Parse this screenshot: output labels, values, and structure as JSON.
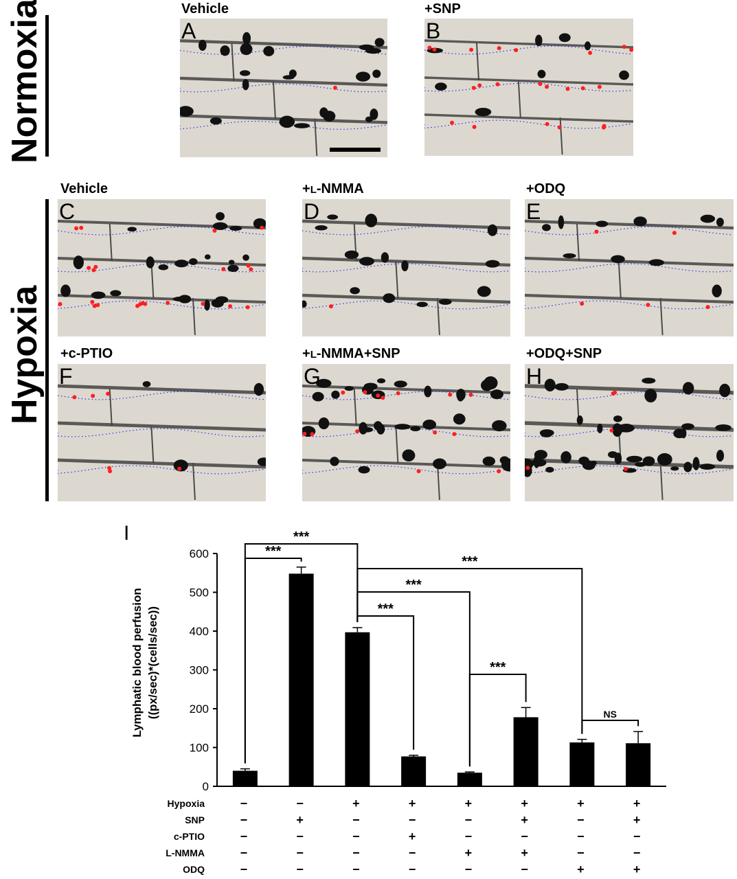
{
  "group_labels": {
    "normoxia": "Normoxia",
    "hypoxia": "Hypoxia"
  },
  "panels": {
    "A": {
      "letter": "A",
      "condition": "Vehicle"
    },
    "B": {
      "letter": "B",
      "condition": "+SNP"
    },
    "C": {
      "letter": "C",
      "condition": "Vehicle"
    },
    "D": {
      "letter": "D",
      "condition_prefix": "+",
      "condition_sc": "L",
      "condition_rest": "-NMMA"
    },
    "E": {
      "letter": "E",
      "condition": "+ODQ"
    },
    "F": {
      "letter": "F",
      "condition": "+c-PTIO"
    },
    "G": {
      "letter": "G",
      "condition_prefix": "+",
      "condition_sc": "L",
      "condition_rest": "-NMMA+SNP"
    },
    "H": {
      "letter": "H",
      "condition": "+ODQ+SNP"
    }
  },
  "colors": {
    "bar": "#000000",
    "dots_red": "#ff1f1f",
    "dots_blue": "#2a2aff",
    "tissue": "#dcd8cf"
  },
  "chart_data": {
    "type": "bar",
    "panel_letter": "I",
    "ylabel_line1": "Lymphatic blood perfusion",
    "ylabel_line2": "((px/sec)*(cells/sec))",
    "ylim": [
      0,
      600
    ],
    "yticks": [
      "0",
      "100",
      "200",
      "300",
      "400",
      "500",
      "600"
    ],
    "values": [
      40,
      548,
      397,
      77,
      35,
      178,
      113,
      111
    ],
    "errors": [
      5,
      17,
      12,
      3,
      2,
      25,
      8,
      30
    ],
    "condition_rows": [
      {
        "label": "Hypoxia",
        "signs": [
          "−",
          "−",
          "+",
          "+",
          "+",
          "+",
          "+",
          "+"
        ]
      },
      {
        "label": "SNP",
        "signs": [
          "−",
          "+",
          "−",
          "−",
          "−",
          "+",
          "−",
          "+"
        ]
      },
      {
        "label": "c-PTIO",
        "signs": [
          "−",
          "−",
          "−",
          "+",
          "−",
          "−",
          "−",
          "−"
        ]
      },
      {
        "label": "L-NMMA",
        "signs": [
          "−",
          "−",
          "−",
          "−",
          "+",
          "+",
          "−",
          "−"
        ]
      },
      {
        "label": "ODQ",
        "signs": [
          "−",
          "−",
          "−",
          "−",
          "−",
          "−",
          "+",
          "+"
        ]
      }
    ],
    "comparisons": [
      {
        "from": 0,
        "to": 2,
        "label": "***"
      },
      {
        "from": 0,
        "to": 1,
        "label": "***"
      },
      {
        "from": 2,
        "to": 6,
        "label": "***"
      },
      {
        "from": 2,
        "to": 4,
        "label": "***"
      },
      {
        "from": 2,
        "to": 3,
        "label": "***"
      },
      {
        "from": 4,
        "to": 5,
        "label": "***"
      },
      {
        "from": 6,
        "to": 7,
        "label": "NS"
      }
    ],
    "grid": false,
    "legend": "none"
  }
}
